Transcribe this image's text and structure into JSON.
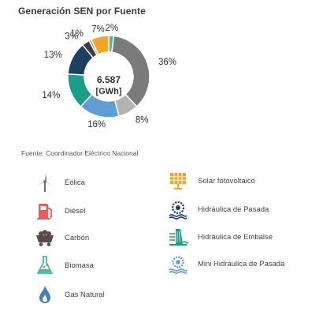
{
  "title": "Generación SEN por Fuente",
  "source_note": "Fuente: Coordinador Eléctrico Nacional",
  "chart_data": {
    "type": "pie",
    "title": "Generación SEN por Fuente",
    "center_value": "6.587",
    "center_unit": "[GWh]",
    "slices": [
      {
        "label": "2%",
        "value": 2,
        "color": "#59b39c"
      },
      {
        "label": "36%",
        "value": 36,
        "color": "#7b7b7b"
      },
      {
        "label": "8%",
        "value": 8,
        "color": "#b3b3b3"
      },
      {
        "label": "16%",
        "value": 16,
        "color": "#5d9ed3"
      },
      {
        "label": "14%",
        "value": 14,
        "color": "#1a9e8a"
      },
      {
        "label": "13%",
        "value": 13,
        "color": "#1e3f64"
      },
      {
        "label": "3%",
        "value": 3,
        "color": "#3d3d3d"
      },
      {
        "label": "1%",
        "value": 1,
        "color": "#9a9a9a"
      },
      {
        "label": "7%",
        "value": 7,
        "color": "#f2a52d"
      }
    ]
  },
  "legend": [
    {
      "label": "Eólica",
      "icon": "wind-turbine-icon",
      "color": "#6d6d6d"
    },
    {
      "label": "Diésel",
      "icon": "fuel-pump-icon",
      "color": "#e0615b"
    },
    {
      "label": "Carbón",
      "icon": "coal-cart-icon",
      "color": "#5a4a45"
    },
    {
      "label": "Biomasa",
      "icon": "flask-icon",
      "color": "#4db5a3"
    },
    {
      "label": "Gas Natural",
      "icon": "gas-flame-icon",
      "color": "#3f7fc0"
    },
    {
      "label": "Solar fotovoltaico",
      "icon": "solar-panel-icon",
      "color": "#f2a52d"
    },
    {
      "label": "Hidráulica de Pasada",
      "icon": "water-wheel-icon",
      "color": "#1e3f64"
    },
    {
      "label": "Hidráulica de Embalse",
      "icon": "dam-icon",
      "color": "#1a9e8a"
    },
    {
      "label": "Mini Hidráulica de Pasada",
      "icon": "mini-water-wheel-icon",
      "color": "#5d9ed3"
    }
  ]
}
